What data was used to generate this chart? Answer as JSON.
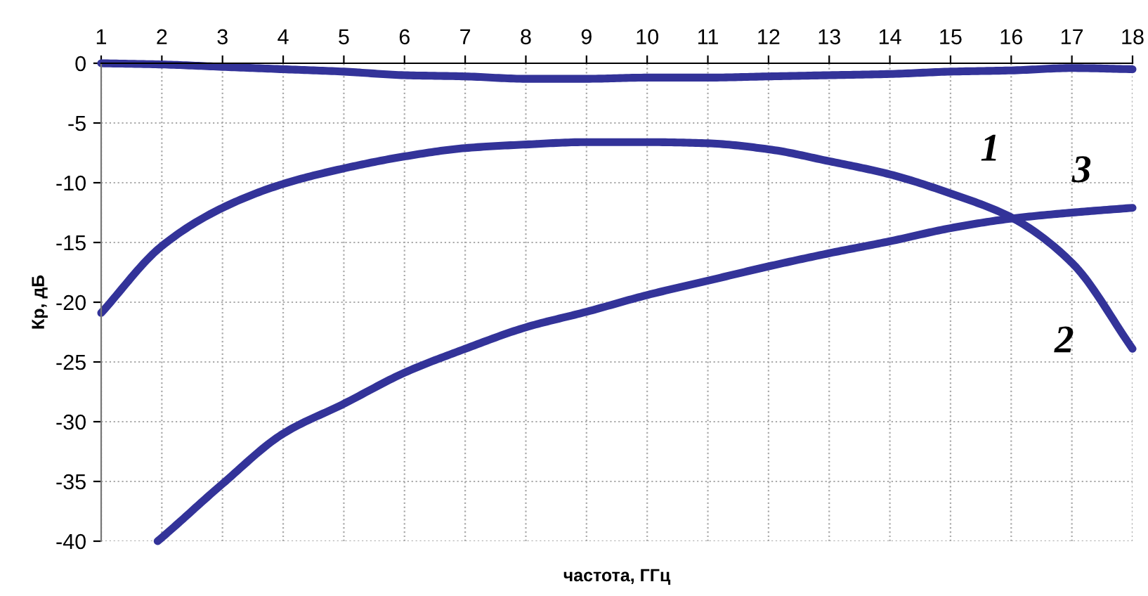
{
  "chart_data": {
    "type": "line",
    "xlabel": "частота, ГГц",
    "ylabel": "Кр, дБ",
    "xlim": [
      1,
      18
    ],
    "xticks": [
      1,
      2,
      3,
      4,
      5,
      6,
      7,
      8,
      9,
      10,
      11,
      12,
      13,
      14,
      15,
      16,
      17,
      18
    ],
    "ylim": [
      -40,
      0
    ],
    "yticks": [
      0,
      -5,
      -10,
      -15,
      -20,
      -25,
      -30,
      -35,
      -40
    ],
    "grid": true,
    "line_style": "solid",
    "series": [
      {
        "color": "#333399",
        "x": [
          1,
          2,
          3,
          4,
          5,
          6,
          7,
          8,
          9,
          10,
          11,
          12,
          13,
          14,
          15,
          16,
          17,
          18
        ],
        "values": [
          0,
          -0.1,
          -0.3,
          -0.5,
          -0.7,
          -1.0,
          -1.1,
          -1.3,
          -1.3,
          -1.2,
          -1.2,
          -1.1,
          -1.0,
          -0.9,
          -0.7,
          -0.6,
          -0.4,
          -0.5
        ]
      },
      {
        "color": "#333399",
        "x": [
          1,
          2,
          3,
          4,
          5,
          6,
          7,
          8,
          9,
          10,
          11,
          12,
          13,
          14,
          15,
          16,
          17,
          18
        ],
        "values": [
          -20.9,
          -15.3,
          -12.1,
          -10.1,
          -8.8,
          -7.8,
          -7.1,
          -6.8,
          -6.6,
          -6.6,
          -6.7,
          -7.2,
          -8.2,
          -9.3,
          -10.9,
          -12.9,
          -16.7,
          -23.9
        ]
      },
      {
        "color": "#333399",
        "x": [
          1.93,
          2,
          3,
          4,
          5,
          6,
          7,
          8,
          9,
          10,
          11,
          12,
          13,
          14,
          15,
          16,
          17,
          18
        ],
        "values": [
          -40,
          -39.7,
          -35.2,
          -31,
          -28.5,
          -25.9,
          -23.9,
          -22.1,
          -20.8,
          -19.4,
          -18.2,
          -17,
          -15.9,
          -14.9,
          -13.8,
          -13,
          -12.5,
          -12.1
        ]
      }
    ],
    "annotations": [
      "1",
      "2",
      "3"
    ]
  }
}
